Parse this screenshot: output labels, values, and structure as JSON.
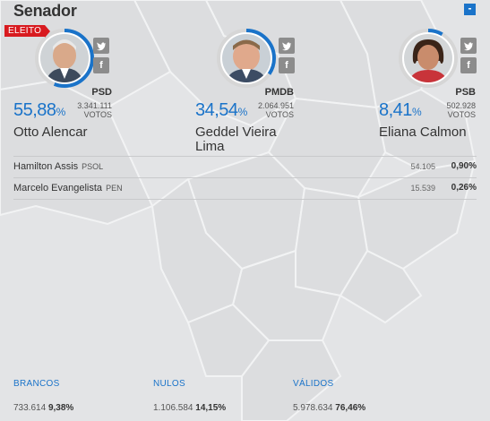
{
  "section_title": "Senador",
  "collapse_label": "-",
  "elected_badge": "ELEITO",
  "candidates": [
    {
      "name_line1": "Otto Alencar",
      "name_line2": "",
      "party": "PSD",
      "percent": "55,88",
      "percent_unit": "%",
      "votes": "3.341.111",
      "votes_label": "VOTOS",
      "share": 0.5588,
      "elected": true
    },
    {
      "name_line1": "Geddel Vieira",
      "name_line2": "Lima",
      "party": "PMDB",
      "percent": "34,54",
      "percent_unit": "%",
      "votes": "2.064.951",
      "votes_label": "VOTOS",
      "share": 0.3454,
      "elected": false
    },
    {
      "name_line1": "Eliana Calmon",
      "name_line2": "",
      "party": "PSB",
      "percent": "8,41",
      "percent_unit": "%",
      "votes": "502.928",
      "votes_label": "VOTOS",
      "share": 0.0841,
      "elected": false
    }
  ],
  "others": [
    {
      "name": "Hamilton Assis",
      "party": "PSOL",
      "votes": "54.105",
      "percent": "0,90%"
    },
    {
      "name": "Marcelo Evangelista",
      "party": "PEN",
      "votes": "15.539",
      "percent": "0,26%"
    }
  ],
  "totals": [
    {
      "label": "BRANCOS",
      "votes": "733.614",
      "percent": "9,38%"
    },
    {
      "label": "NULOS",
      "votes": "1.106.584",
      "percent": "14,15%"
    },
    {
      "label": "VÁLIDOS",
      "votes": "5.978.634",
      "percent": "76,46%"
    }
  ],
  "icons": {
    "twitter": "twitter-icon",
    "facebook": "facebook-icon"
  },
  "colors": {
    "accent": "#1a73c9",
    "ring_track": "#d6d6d6",
    "elected": "#d81a1f"
  }
}
